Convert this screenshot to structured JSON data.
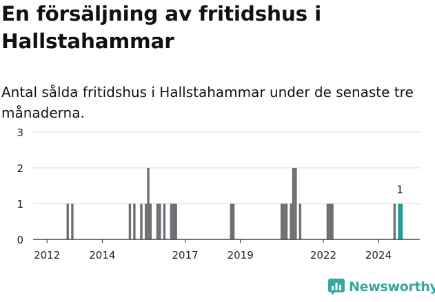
{
  "title": "En försäljning av fritidshus i Hallstahammar",
  "subtitle": "Antal sålda fritidshus i Hallstahammar under de senaste tre månaderna.",
  "logo": {
    "text": "Newsworthy",
    "icon": "newsworthy-chart-icon",
    "color": "#37a89b"
  },
  "colors": {
    "bar": "#6e6e73",
    "highlight": "#1f9b93",
    "grid": "#d9d9d9",
    "axis": "#222222"
  },
  "chart_data": {
    "type": "bar",
    "xlabel": "",
    "ylabel": "",
    "ylim": [
      0,
      3
    ],
    "yticks": [
      0,
      1,
      2,
      3
    ],
    "grid": true,
    "xtick_labels": [
      "2012",
      "2014",
      "2017",
      "2019",
      "2022",
      "2024"
    ],
    "x_range": [
      "2011-07-01",
      "2025-07-01"
    ],
    "period": "quarter",
    "bars": [
      {
        "date": "2012-10-01",
        "value": 1
      },
      {
        "date": "2012-12-01",
        "value": 1
      },
      {
        "date": "2015-01-01",
        "value": 1
      },
      {
        "date": "2015-03-01",
        "value": 1
      },
      {
        "date": "2015-06-01",
        "value": 1
      },
      {
        "date": "2015-08-01",
        "value": 1
      },
      {
        "date": "2015-09-01",
        "value": 2
      },
      {
        "date": "2015-10-01",
        "value": 1
      },
      {
        "date": "2016-01-01",
        "value": 1
      },
      {
        "date": "2016-02-01",
        "value": 1
      },
      {
        "date": "2016-04-01",
        "value": 1
      },
      {
        "date": "2016-07-01",
        "value": 1
      },
      {
        "date": "2016-08-01",
        "value": 1
      },
      {
        "date": "2016-09-01",
        "value": 1
      },
      {
        "date": "2018-09-01",
        "value": 1
      },
      {
        "date": "2018-10-01",
        "value": 1
      },
      {
        "date": "2020-07-01",
        "value": 1
      },
      {
        "date": "2020-08-01",
        "value": 1
      },
      {
        "date": "2020-09-01",
        "value": 1
      },
      {
        "date": "2020-11-01",
        "value": 1
      },
      {
        "date": "2020-12-01",
        "value": 2
      },
      {
        "date": "2021-01-01",
        "value": 2
      },
      {
        "date": "2021-03-01",
        "value": 1
      },
      {
        "date": "2022-03-01",
        "value": 1
      },
      {
        "date": "2022-04-01",
        "value": 1
      },
      {
        "date": "2022-05-01",
        "value": 1
      },
      {
        "date": "2024-08-01",
        "value": 1
      },
      {
        "date": "2024-10-01",
        "value": 1,
        "highlight": true,
        "label": "1"
      },
      {
        "date": "2024-11-01",
        "value": 1,
        "highlight": true
      }
    ]
  }
}
